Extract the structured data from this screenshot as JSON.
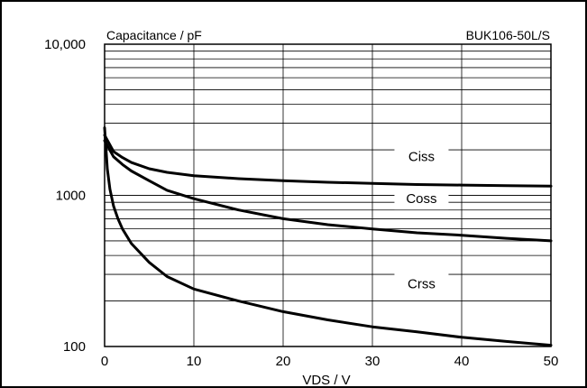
{
  "chart_data": {
    "type": "line",
    "title": "",
    "corner_label": "BUK106-50L/S",
    "ylabel": "Capacitance / pF",
    "xlabel": "VDS / V",
    "xlim": [
      0,
      50
    ],
    "ylim": [
      100,
      10000
    ],
    "y_scale": "log",
    "grid": true,
    "x_ticks": [
      0,
      10,
      20,
      30,
      40,
      50
    ],
    "x_tick_labels": [
      "0",
      "10",
      "20",
      "30",
      "40",
      "50"
    ],
    "y_ticks": [
      100,
      1000,
      10000
    ],
    "y_tick_labels": [
      "100",
      "1000",
      "10,000"
    ],
    "series": [
      {
        "name": "Ciss",
        "x": [
          0,
          1,
          2,
          3,
          5,
          7,
          10,
          15,
          20,
          25,
          30,
          35,
          40,
          45,
          50
        ],
        "values": [
          2500,
          1950,
          1780,
          1650,
          1500,
          1420,
          1350,
          1290,
          1250,
          1220,
          1200,
          1180,
          1170,
          1160,
          1150
        ]
      },
      {
        "name": "Coss",
        "x": [
          0,
          1,
          2,
          3,
          5,
          7,
          10,
          15,
          20,
          25,
          30,
          35,
          40,
          45,
          50
        ],
        "values": [
          2300,
          1800,
          1600,
          1450,
          1250,
          1080,
          950,
          800,
          700,
          640,
          600,
          565,
          545,
          520,
          500
        ]
      },
      {
        "name": "Crss",
        "x": [
          0,
          0.3,
          0.6,
          1,
          1.5,
          2,
          3,
          5,
          7,
          10,
          15,
          20,
          25,
          30,
          35,
          40,
          45,
          50
        ],
        "values": [
          2800,
          1500,
          1100,
          850,
          700,
          600,
          480,
          360,
          290,
          240,
          200,
          170,
          150,
          135,
          125,
          115,
          108,
          102
        ]
      }
    ]
  }
}
